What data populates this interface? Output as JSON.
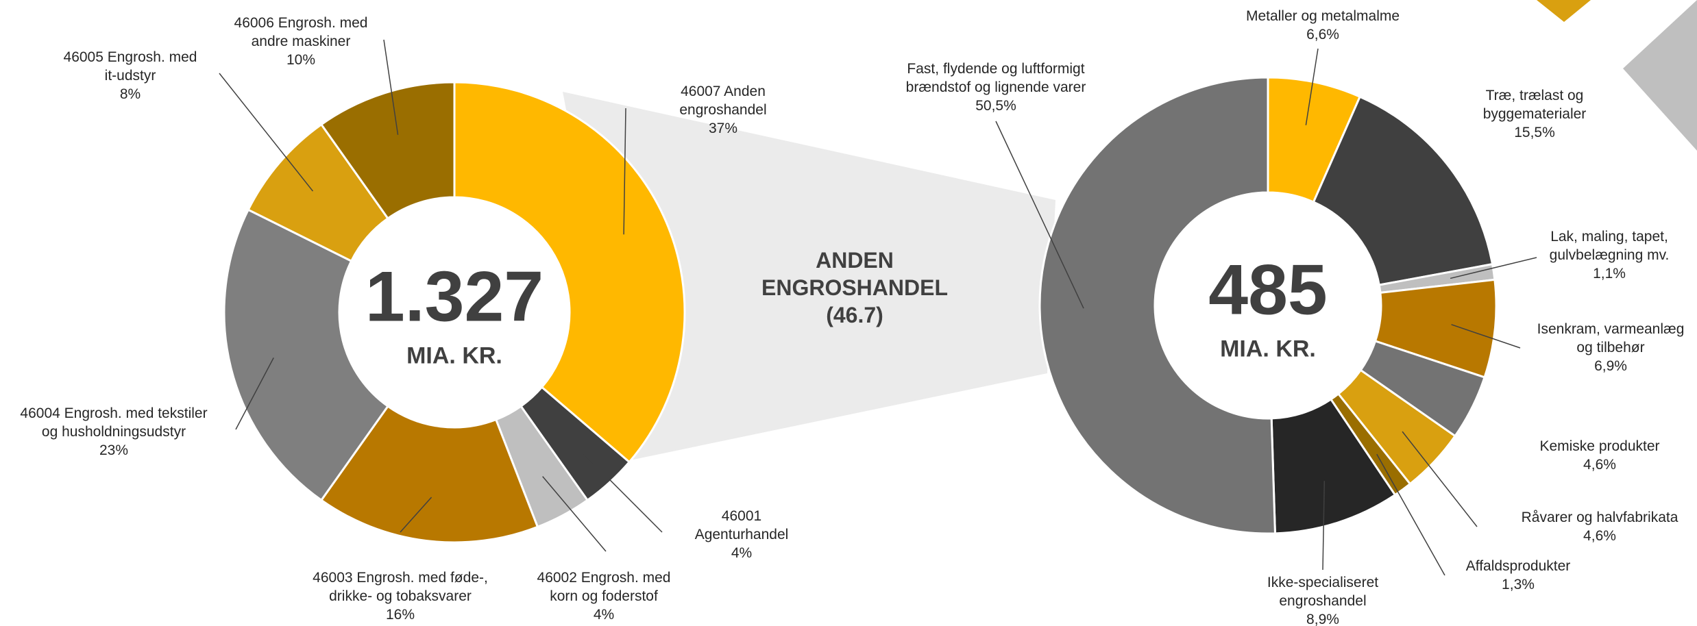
{
  "chart_data": [
    {
      "type": "donut",
      "categories": [
        "46007 Anden\nengroshandel",
        "46001\nAgenturhandel",
        "46002 Engrosh. med\nkorn og foderstof",
        "46003 Engrosh. med føde-,\ndrikke- og tobaksvarer",
        "46004 Engrosh. med tekstiler\nog husholdningsudstyr",
        "46005 Engrosh. med\nit-udstyr",
        "46006 Engrosh. med\nandre maskiner"
      ],
      "values": [
        37,
        4,
        4,
        16,
        23,
        8,
        10
      ],
      "value_labels": [
        "37%",
        "4%",
        "4%",
        "16%",
        "23%",
        "8%",
        "10%"
      ],
      "colors": [
        "#ffb800",
        "#404040",
        "#bfbfbf",
        "#b87800",
        "#7f7f7f",
        "#d9a010",
        "#9a6e00"
      ],
      "center_value": "1.327",
      "center_label": "MIA. KR.",
      "annotation": "ANDEN\nENGROSHANDEL\n(46.7)"
    },
    {
      "type": "donut",
      "categories": [
        "Metaller og metalmalme",
        "Træ, trælast og\nbyggematerialer",
        "Lak, maling, tapet,\ngulvbelægning mv.",
        "Isenkram, varmeanlæg\nog tilbehør",
        "Kemiske produkter",
        "Råvarer og halvfabrikata",
        "Affaldsprodukter",
        "Ikke-specialiseret\nengroshandel",
        "Fast, flydende og luftformigt\nbrændstof og lignende varer"
      ],
      "values": [
        6.6,
        15.5,
        1.1,
        6.9,
        4.6,
        4.6,
        1.3,
        8.9,
        50.5
      ],
      "value_labels": [
        "6,6%",
        "15,5%",
        "1,1%",
        "6,9%",
        "4,6%",
        "4,6%",
        "1,3%",
        "8,9%",
        "50,5%"
      ],
      "colors": [
        "#ffb800",
        "#404040",
        "#bfbfbf",
        "#b87800",
        "#737373",
        "#d9a010",
        "#9a6e00",
        "#262626",
        "#737373"
      ],
      "center_value": "485",
      "center_label": "MIA. KR."
    }
  ]
}
